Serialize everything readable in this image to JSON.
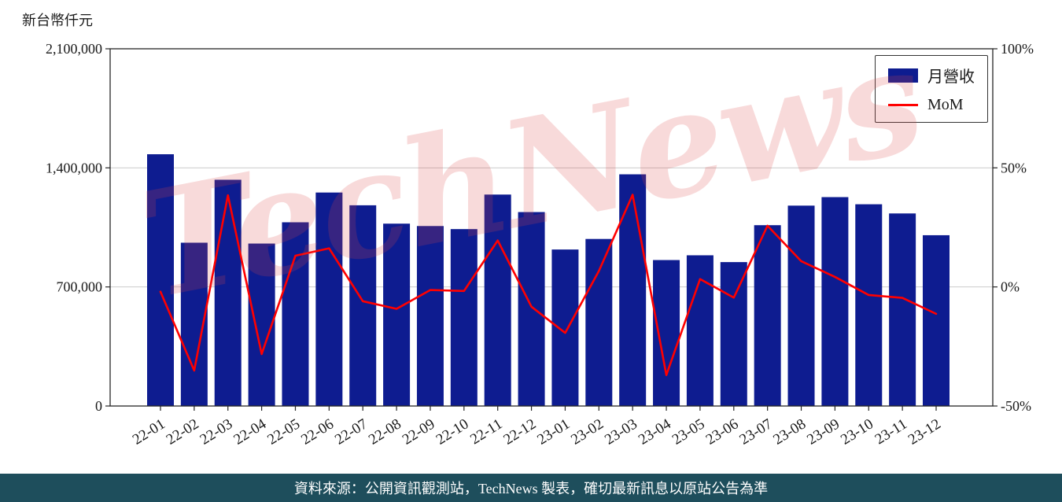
{
  "unit_label": "新台幣仟元",
  "watermark_text": "TechNews",
  "legend": {
    "bar_label": "月營收",
    "line_label": "MoM"
  },
  "footer": {
    "text": "資料來源：公開資訊觀測站，TechNews 製表，確切最新訊息以原站公告為準"
  },
  "colors": {
    "bar": "#0e1c90",
    "line": "#ff0000",
    "grid": "#cccccc",
    "axis": "#262626",
    "tick_text": "#1a1a1a",
    "footer_bg": "#1e4e5c",
    "watermark": "rgba(220,70,70,0.20)"
  },
  "chart_data": {
    "type": "bar",
    "title": "",
    "categories": [
      "22-01",
      "22-02",
      "22-03",
      "22-04",
      "22-05",
      "22-06",
      "22-07",
      "22-08",
      "22-09",
      "22-10",
      "22-11",
      "22-12",
      "23-01",
      "23-02",
      "23-03",
      "23-04",
      "23-05",
      "23-06",
      "23-07",
      "23-08",
      "23-09",
      "23-10",
      "23-11",
      "23-12"
    ],
    "series": [
      {
        "name": "月營收",
        "type": "bar",
        "axis": "left",
        "unit": "新台幣仟元",
        "values": [
          1480000,
          960000,
          1330000,
          955000,
          1080000,
          1255000,
          1180000,
          1072000,
          1058000,
          1040000,
          1243000,
          1140000,
          920000,
          982000,
          1362000,
          858000,
          886000,
          846000,
          1063000,
          1178000,
          1228000,
          1186000,
          1132000,
          1004000
        ]
      },
      {
        "name": "MoM",
        "type": "line",
        "axis": "right",
        "unit": "%",
        "values": [
          -2.0,
          -35.1,
          38.5,
          -28.2,
          13.1,
          16.2,
          -6.0,
          -9.2,
          -1.3,
          -1.7,
          19.5,
          -8.3,
          -19.3,
          6.7,
          38.7,
          -37.0,
          3.3,
          -4.5,
          25.7,
          10.8,
          4.2,
          -3.4,
          -4.6,
          -11.3
        ]
      }
    ],
    "left_axis": {
      "label": "新台幣仟元",
      "ticks": [
        0,
        700000,
        1400000,
        2100000
      ],
      "range": [
        0,
        2100000
      ]
    },
    "right_axis": {
      "ticks": [
        -50,
        0,
        50,
        100
      ],
      "range": [
        -50,
        100
      ],
      "tick_suffix": "%"
    },
    "grid": "horizontal",
    "legend_position": "top-right"
  }
}
